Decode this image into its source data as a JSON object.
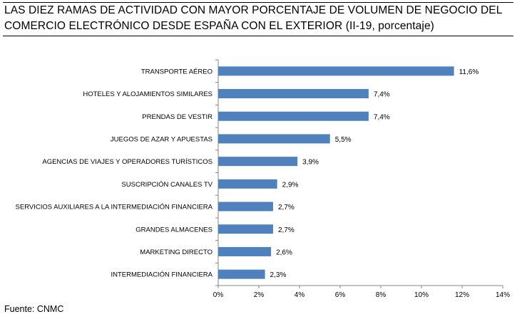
{
  "title": "LAS DIEZ RAMAS DE ACTIVIDAD CON MAYOR PORCENTAJE DE VOLUMEN DE NEGOCIO DEL COMERCIO ELECTRÓNICO DESDE ESPAÑA CON EL EXTERIOR (II-19, porcentaje)",
  "source": "Fuente: CNMC",
  "colors": {
    "bar": "#4F81BD",
    "axis": "#868686"
  },
  "chart_data": {
    "type": "bar",
    "orientation": "horizontal",
    "title": "LAS DIEZ RAMAS DE ACTIVIDAD CON MAYOR PORCENTAJE DE VOLUMEN DE NEGOCIO DEL COMERCIO ELECTRÓNICO DESDE ESPAÑA CON EL EXTERIOR (II-19, porcentaje)",
    "categories": [
      "TRANSPORTE AÉREO",
      "HOTELES  Y ALOJAMIENTOS SIMILARES",
      "PRENDAS DE VESTIR",
      "JUEGOS DE AZAR Y APUESTAS",
      "AGENCIAS DE VIAJES Y OPERADORES TURÍSTICOS",
      "SUSCRIPCIÓN CANALES TV",
      "SERVICIOS AUXILIARES A LA INTERMEDIACIÓN FINANCIERA",
      "GRANDES ALMACENES",
      "MARKETING DIRECTO",
      "INTERMEDIACIÓN FINANCIERA"
    ],
    "values": [
      11.6,
      7.4,
      7.4,
      5.5,
      3.9,
      2.9,
      2.7,
      2.7,
      2.6,
      2.3
    ],
    "value_labels": [
      "11,6%",
      "7,4%",
      "7,4%",
      "5,5%",
      "3,9%",
      "2,9%",
      "2,7%",
      "2,7%",
      "2,6%",
      "2,3%"
    ],
    "xlim": [
      0,
      14
    ],
    "xticks": [
      0,
      2,
      4,
      6,
      8,
      10,
      12,
      14
    ],
    "xtick_labels": [
      "0%",
      "2%",
      "4%",
      "6%",
      "8%",
      "10%",
      "12%",
      "14%"
    ],
    "xlabel": "",
    "ylabel": "",
    "grid": false,
    "legend": "none"
  }
}
